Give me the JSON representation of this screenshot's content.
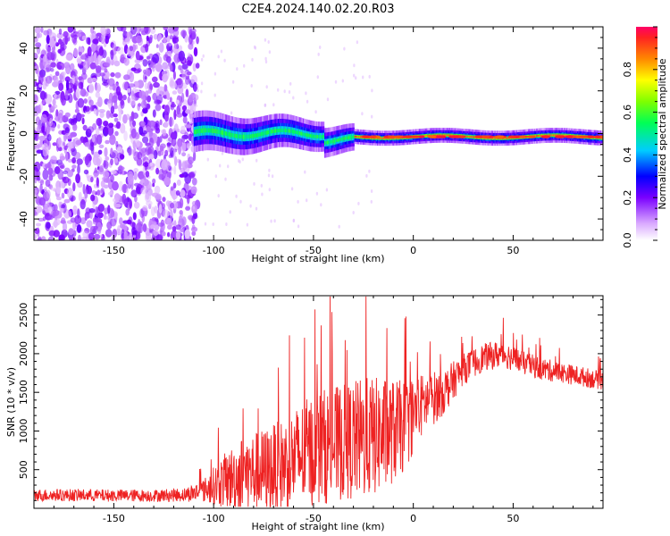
{
  "chart_data": [
    {
      "type": "heatmap",
      "title": "C2E4.2024.140.02.20.R03",
      "xlabel": "Height of straight line (km)",
      "ylabel": "Frequency (Hz)",
      "xlim": [
        -190,
        95
      ],
      "ylim": [
        -50,
        50
      ],
      "xticks": [
        -150,
        -100,
        -50,
        0,
        50
      ],
      "yticks": [
        -40,
        -20,
        0,
        20,
        40
      ],
      "colorbar": {
        "label": "Normalized spectral amplitude",
        "range": [
          0,
          1
        ],
        "ticks": [
          "0.0",
          "0.2",
          "0.4",
          "0.6",
          "0.8"
        ]
      },
      "regions": [
        {
          "name": "noise",
          "x_range": [
            -190,
            -110
          ],
          "freq_range": [
            -50,
            50
          ],
          "amplitude": "0.05-0.25"
        },
        {
          "name": "signal-onset",
          "x_range": [
            -110,
            -30
          ],
          "freq_center": 0,
          "freq_halfwidth": 6,
          "amplitude": "0.2-0.6"
        },
        {
          "name": "signal-strong",
          "x_range": [
            -30,
            95
          ],
          "freq_center": -1.5,
          "freq_halfwidth": 2,
          "amplitude": "0.6-1.0"
        }
      ]
    },
    {
      "type": "line",
      "title": "",
      "xlabel": "Height of straight line (km)",
      "ylabel": "SNR (10 * v/v)",
      "xlim": [
        -190,
        95
      ],
      "ylim": [
        0,
        2750
      ],
      "xticks": [
        -150,
        -100,
        -50,
        0,
        50
      ],
      "yticks": [
        500,
        1000,
        1500,
        2000,
        2500
      ],
      "series": [
        {
          "name": "SNR",
          "color": "#ee2222",
          "x": [
            -190,
            -170,
            -150,
            -130,
            -115,
            -105,
            -95,
            -85,
            -75,
            -65,
            -55,
            -45,
            -35,
            -25,
            -15,
            -5,
            5,
            15,
            25,
            35,
            45,
            55,
            65,
            75,
            85,
            95
          ],
          "y_mean": [
            170,
            170,
            165,
            165,
            175,
            230,
            350,
            450,
            480,
            560,
            700,
            800,
            850,
            900,
            950,
            1050,
            1350,
            1500,
            1800,
            1950,
            2000,
            1880,
            1800,
            1750,
            1700,
            1650
          ],
          "y_spread": [
            80,
            80,
            80,
            80,
            90,
            150,
            350,
            500,
            550,
            600,
            700,
            750,
            750,
            800,
            750,
            600,
            400,
            300,
            200,
            180,
            180,
            150,
            150,
            130,
            130,
            120
          ]
        }
      ]
    }
  ]
}
